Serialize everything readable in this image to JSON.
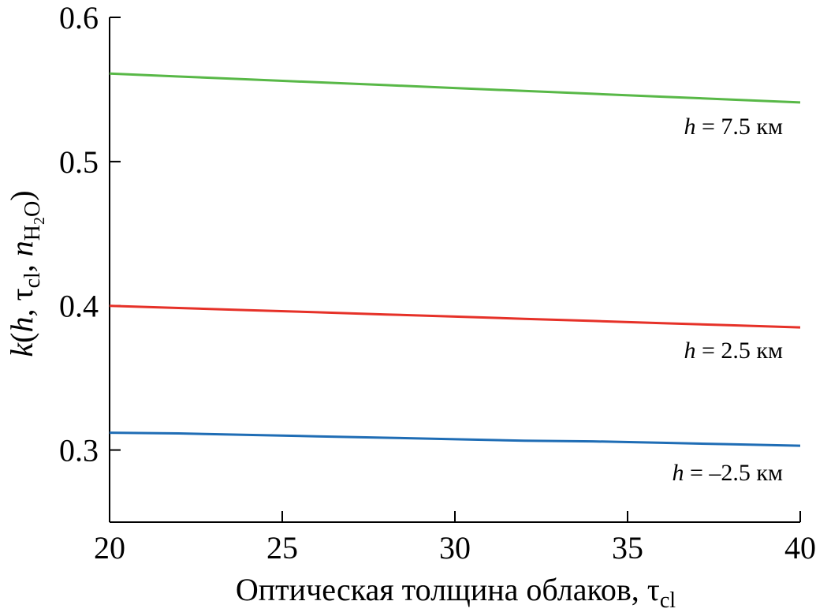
{
  "chart_data": {
    "type": "line",
    "xlabel": {
      "text": "Оптическая толщина облаков, ",
      "symbol": "τ",
      "subscript": "cl"
    },
    "ylabel": {
      "func": "k",
      "open": "(",
      "arg1": "h",
      "sep1": ", ",
      "arg2_symbol": "τ",
      "arg2_sub": "cl",
      "sep2": ", ",
      "arg3": "n",
      "arg3_sub": "H",
      "arg3_sub_num": "2",
      "arg3_sub_end": "O",
      "close": ")"
    },
    "xlim": [
      20,
      40
    ],
    "ylim": [
      0.25,
      0.6
    ],
    "x_ticks": [
      20,
      25,
      30,
      35,
      40
    ],
    "x_tick_labels": [
      "20",
      "25",
      "30",
      "35",
      "40"
    ],
    "y_ticks": [
      0.3,
      0.4,
      0.5,
      0.6
    ],
    "y_tick_labels": [
      "0.3",
      "0.4",
      "0.5",
      "0.6"
    ],
    "grid": false,
    "series": [
      {
        "key": "h75",
        "color": "#58b847",
        "label": {
          "var": "h",
          "rest": " = 7.5 км"
        },
        "x": [
          20,
          22,
          24,
          26,
          28,
          30,
          32,
          34,
          36,
          38,
          40
        ],
        "y": [
          0.561,
          0.559,
          0.557,
          0.555,
          0.553,
          0.551,
          0.549,
          0.547,
          0.545,
          0.543,
          0.541
        ]
      },
      {
        "key": "h25",
        "color": "#e63128",
        "label": {
          "var": "h",
          "rest": " = 2.5 км"
        },
        "x": [
          20,
          22,
          24,
          26,
          28,
          30,
          32,
          34,
          36,
          38,
          40
        ],
        "y": [
          0.4,
          0.3985,
          0.397,
          0.3955,
          0.394,
          0.3925,
          0.391,
          0.3895,
          0.388,
          0.3865,
          0.385
        ]
      },
      {
        "key": "hm25",
        "color": "#1f6db5",
        "label": {
          "var": "h",
          "rest": " = –2.5 км"
        },
        "x": [
          20,
          22,
          24,
          26,
          28,
          30,
          32,
          34,
          36,
          38,
          40
        ],
        "y": [
          0.312,
          0.3115,
          0.3105,
          0.3095,
          0.3085,
          0.3075,
          0.3065,
          0.306,
          0.305,
          0.304,
          0.303
        ]
      }
    ]
  }
}
